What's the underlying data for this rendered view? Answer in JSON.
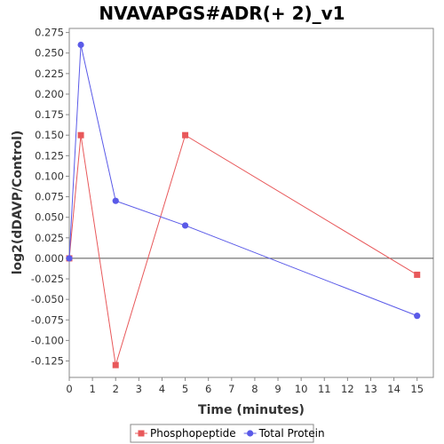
{
  "chart_data": {
    "type": "line",
    "title": "NVAVAPGS#ADR(+ 2)_v1",
    "xlabel": "Time (minutes)",
    "ylabel": "log2(dDAVP/Control)",
    "xlim": [
      0,
      15.7
    ],
    "ylim": [
      -0.145,
      0.28
    ],
    "x_ticks": [
      0,
      1,
      2,
      3,
      4,
      5,
      6,
      7,
      8,
      9,
      10,
      11,
      12,
      13,
      14,
      15
    ],
    "y_ticks": [
      -0.125,
      -0.1,
      -0.075,
      -0.05,
      -0.025,
      0,
      0.025,
      0.05,
      0.075,
      0.1,
      0.125,
      0.15,
      0.175,
      0.2,
      0.225,
      0.25,
      0.275
    ],
    "y_tick_labels": [
      "-0.125",
      "-0.100",
      "-0.075",
      "-0.050",
      "-0.025",
      "0.000",
      "0.025",
      "0.050",
      "0.075",
      "0.100",
      "0.125",
      "0.150",
      "0.175",
      "0.200",
      "0.225",
      "0.250",
      "0.275"
    ],
    "zero_line": true,
    "legend_position": "bottom",
    "series": [
      {
        "name": "Phosphopeptide",
        "color": "#e8585a",
        "marker": "square",
        "x": [
          0,
          0.5,
          2,
          5,
          15
        ],
        "y": [
          0.0,
          0.15,
          -0.13,
          0.15,
          -0.02
        ]
      },
      {
        "name": "Total Protein",
        "color": "#5a5ae8",
        "marker": "circle",
        "x": [
          0,
          0.5,
          2,
          5,
          15
        ],
        "y": [
          0.0,
          0.26,
          0.07,
          0.04,
          -0.07
        ]
      }
    ]
  }
}
